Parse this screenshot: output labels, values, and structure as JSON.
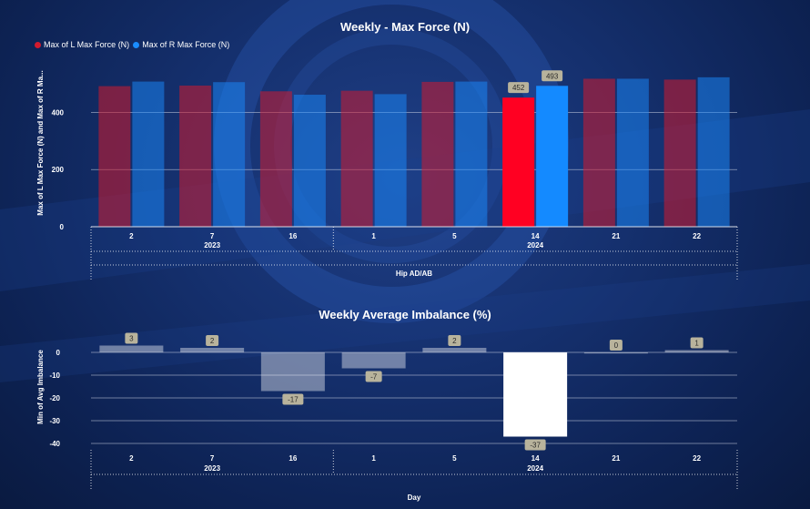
{
  "colors": {
    "left_series": "#d11a2e",
    "right_series": "#1a8cff",
    "left_highlight": "#ff0022",
    "right_highlight": "#148aff",
    "imbalance_bar": "#ffffff",
    "grid": "#c8cfe0"
  },
  "chart_data": [
    {
      "type": "bar",
      "title": "Weekly - Max Force (N)",
      "ylabel": "Max of L Max Force (N) and Max of R Ma...",
      "xlabel": "Hip AD/AB",
      "categories": [
        "2",
        "7",
        "16",
        "1",
        "5",
        "14",
        "21",
        "22"
      ],
      "groups": [
        {
          "label": "2023",
          "categories": [
            "2",
            "7",
            "16"
          ]
        },
        {
          "label": "2024",
          "categories": [
            "1",
            "5",
            "14",
            "21",
            "22"
          ]
        }
      ],
      "series": [
        {
          "name": "Max of L Max Force (N)",
          "values": [
            492,
            494,
            474,
            476,
            507,
            452,
            518,
            515
          ]
        },
        {
          "name": "Max of R Max Force (N)",
          "values": [
            508,
            506,
            462,
            464,
            508,
            493,
            518,
            523
          ]
        }
      ],
      "highlight_index": 5,
      "data_labels": [
        {
          "category": "14",
          "series": 0,
          "text": "452"
        },
        {
          "category": "14",
          "series": 1,
          "text": "493"
        }
      ],
      "yticks": [
        "0",
        "200",
        "400"
      ],
      "ylim": [
        0,
        580
      ],
      "grid": true,
      "legend": "top-left"
    },
    {
      "type": "bar",
      "title": "Weekly Average Imbalance (%)",
      "ylabel": "Min of Avg Imbalance",
      "xlabel": "Day",
      "categories": [
        "2",
        "7",
        "16",
        "1",
        "5",
        "14",
        "21",
        "22"
      ],
      "groups": [
        {
          "label": "2023",
          "categories": [
            "2",
            "7",
            "16"
          ]
        },
        {
          "label": "2024",
          "categories": [
            "1",
            "5",
            "14",
            "21",
            "22"
          ]
        }
      ],
      "values": [
        3,
        2,
        -17,
        -7,
        2,
        -37,
        0,
        1
      ],
      "data_labels": [
        "3",
        "2",
        "-17",
        "-7",
        "2",
        "-37",
        "0",
        "1"
      ],
      "highlight_index": 5,
      "yticks": [
        "0",
        "-10",
        "-20",
        "-30",
        "-40"
      ],
      "ylim": [
        -40,
        4
      ],
      "grid": true,
      "legend": "none"
    }
  ]
}
